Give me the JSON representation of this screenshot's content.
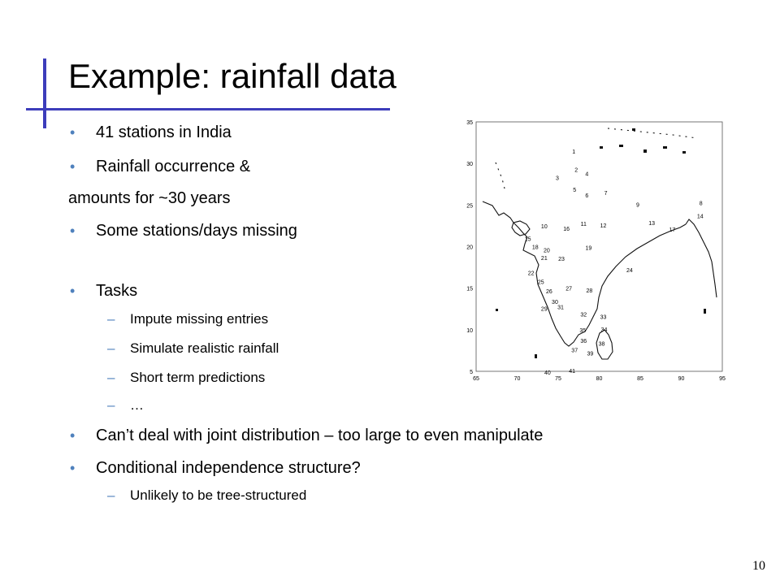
{
  "slide": {
    "title": "Example: rainfall data",
    "bullets_top": [
      "41 stations in India",
      "Rainfall occurrence &"
    ],
    "continuation": "amounts for ~30 years",
    "bullet_missing": "Some stations/days missing",
    "bullet_tasks": "Tasks",
    "tasks": [
      "Impute missing entries",
      "Simulate realistic rainfall",
      "Short term predictions",
      "…"
    ],
    "bullets_bottom": [
      "Can’t deal with joint distribution – too large to even manipulate",
      "Conditional independence structure?"
    ],
    "sub_bottom": "Unlikely to be tree-structured",
    "bullet_symbol": "•",
    "dash_symbol": "–",
    "page_number": "10"
  },
  "map": {
    "x_ticks": [
      "65",
      "70",
      "75",
      "80",
      "85",
      "90",
      "95"
    ],
    "y_ticks": [
      "35",
      "30",
      "25",
      "20",
      "15",
      "10",
      "5"
    ],
    "stations": [
      {
        "id": "1",
        "lon": 76.9,
        "lat": 31.2
      },
      {
        "id": "2",
        "lon": 77.2,
        "lat": 29.0
      },
      {
        "id": "3",
        "lon": 74.9,
        "lat": 28.0
      },
      {
        "id": "4",
        "lon": 78.5,
        "lat": 28.5
      },
      {
        "id": "5",
        "lon": 77.0,
        "lat": 26.6
      },
      {
        "id": "6",
        "lon": 78.5,
        "lat": 25.9
      },
      {
        "id": "7",
        "lon": 80.8,
        "lat": 26.2
      },
      {
        "id": "8",
        "lon": 92.4,
        "lat": 25.0
      },
      {
        "id": "9",
        "lon": 84.7,
        "lat": 24.8
      },
      {
        "id": "10",
        "lon": 73.3,
        "lat": 22.2
      },
      {
        "id": "11",
        "lon": 78.1,
        "lat": 22.5
      },
      {
        "id": "12",
        "lon": 80.5,
        "lat": 22.3
      },
      {
        "id": "13",
        "lon": 86.4,
        "lat": 22.6
      },
      {
        "id": "14",
        "lon": 92.3,
        "lat": 23.4
      },
      {
        "id": "15",
        "lon": 71.3,
        "lat": 20.7
      },
      {
        "id": "16",
        "lon": 76.0,
        "lat": 21.9
      },
      {
        "id": "17",
        "lon": 88.9,
        "lat": 21.8
      },
      {
        "id": "18",
        "lon": 72.2,
        "lat": 19.7
      },
      {
        "id": "19",
        "lon": 78.7,
        "lat": 19.6
      },
      {
        "id": "20",
        "lon": 73.6,
        "lat": 19.3
      },
      {
        "id": "21",
        "lon": 73.3,
        "lat": 18.4
      },
      {
        "id": "22",
        "lon": 71.7,
        "lat": 16.6
      },
      {
        "id": "23",
        "lon": 75.4,
        "lat": 18.3
      },
      {
        "id": "24",
        "lon": 83.7,
        "lat": 16.9
      },
      {
        "id": "25",
        "lon": 72.9,
        "lat": 15.5
      },
      {
        "id": "26",
        "lon": 73.9,
        "lat": 14.4
      },
      {
        "id": "27",
        "lon": 76.3,
        "lat": 14.7
      },
      {
        "id": "28",
        "lon": 78.8,
        "lat": 14.5
      },
      {
        "id": "29",
        "lon": 73.3,
        "lat": 12.3
      },
      {
        "id": "30",
        "lon": 74.6,
        "lat": 13.1
      },
      {
        "id": "31",
        "lon": 75.3,
        "lat": 12.5
      },
      {
        "id": "32",
        "lon": 78.1,
        "lat": 11.6
      },
      {
        "id": "33",
        "lon": 80.5,
        "lat": 11.3
      },
      {
        "id": "34",
        "lon": 80.6,
        "lat": 9.8
      },
      {
        "id": "35",
        "lon": 78.0,
        "lat": 9.7
      },
      {
        "id": "36",
        "lon": 78.1,
        "lat": 8.4
      },
      {
        "id": "37",
        "lon": 77.0,
        "lat": 7.3
      },
      {
        "id": "38",
        "lon": 80.3,
        "lat": 8.1
      },
      {
        "id": "39",
        "lon": 78.9,
        "lat": 6.9
      },
      {
        "id": "40",
        "lon": 73.7,
        "lat": 4.6
      },
      {
        "id": "41",
        "lon": 76.7,
        "lat": 4.8
      }
    ]
  }
}
